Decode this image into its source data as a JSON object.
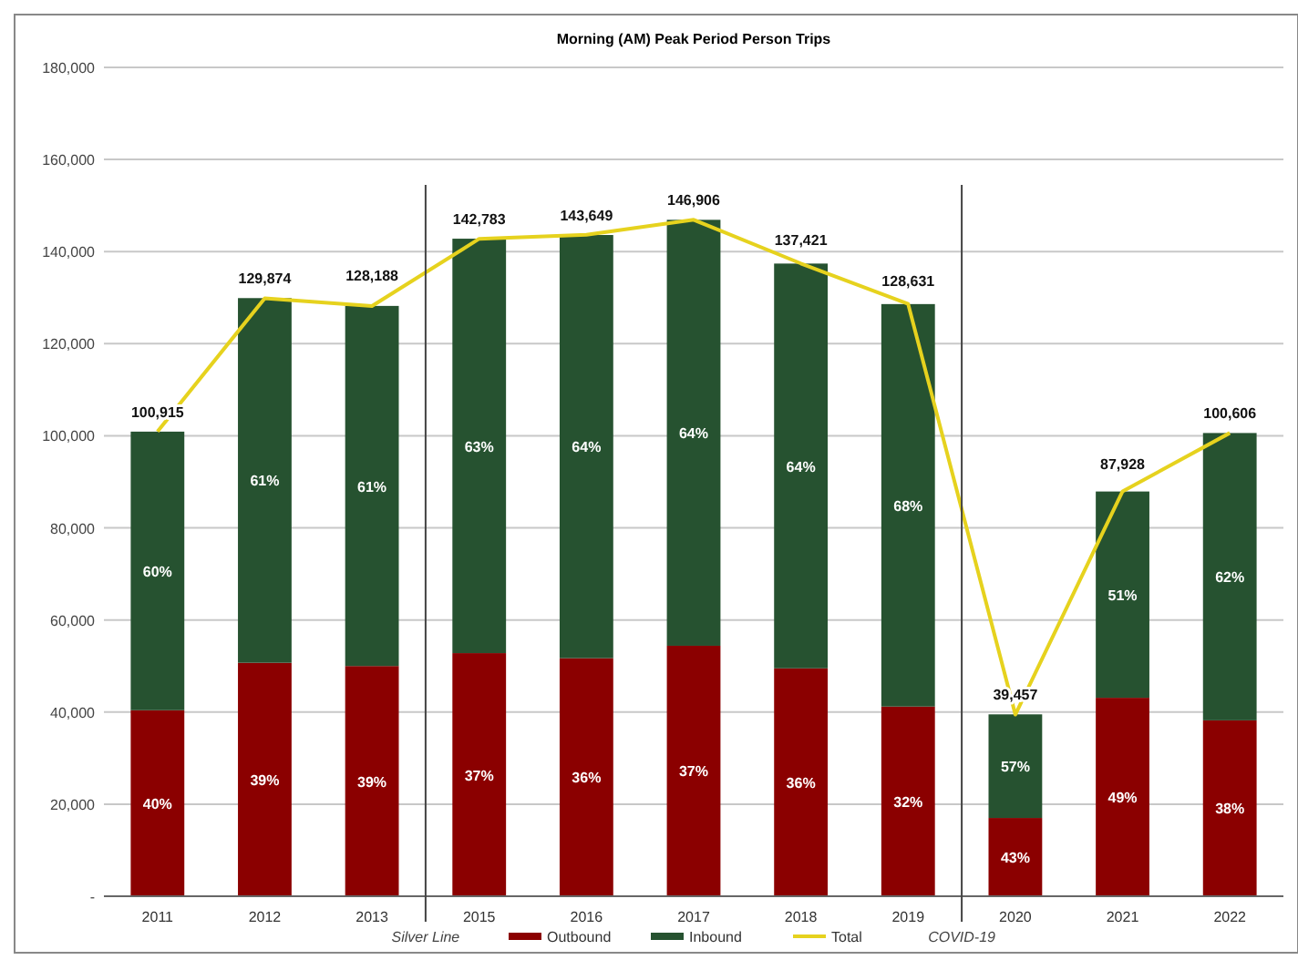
{
  "chart_data": {
    "type": "bar",
    "title": "Morning (AM) Peak Period Person Trips",
    "stacked": true,
    "categories": [
      "2011",
      "2012",
      "2013",
      "2015",
      "2016",
      "2017",
      "2018",
      "2019",
      "2020",
      "2021",
      "2022"
    ],
    "series": [
      {
        "name": "Outbound",
        "color": "#8b0000",
        "values": [
          40400,
          50700,
          50000,
          52800,
          51700,
          54400,
          49500,
          41200,
          17000,
          43100,
          38200
        ]
      },
      {
        "name": "Inbound",
        "color": "#265230",
        "values": [
          60500,
          79200,
          78200,
          90000,
          91900,
          92500,
          87900,
          87400,
          22500,
          44800,
          62400
        ]
      },
      {
        "name": "Total",
        "type": "line",
        "color": "#e6d21e",
        "marker": "none",
        "values": [
          100915,
          129874,
          128188,
          142783,
          143649,
          146906,
          137421,
          128631,
          39457,
          87928,
          100606
        ],
        "value_labels": [
          "100,915",
          "129,874",
          "128,188",
          "142,783",
          "143,649",
          "146,906",
          "137,421",
          "128,631",
          "39,457",
          "87,928",
          "100,606"
        ]
      }
    ],
    "ylim": [
      0,
      180000
    ],
    "yticks": [
      {
        "value": 0,
        "label": "-"
      },
      {
        "value": 20000,
        "label": "20,000"
      },
      {
        "value": 40000,
        "label": "40,000"
      },
      {
        "value": 60000,
        "label": "60,000"
      },
      {
        "value": 80000,
        "label": "80,000"
      },
      {
        "value": 100000,
        "label": "100,000"
      },
      {
        "value": 120000,
        "label": "120,000"
      },
      {
        "value": 140000,
        "label": "140,000"
      },
      {
        "value": 160000,
        "label": "160,000"
      },
      {
        "value": 180000,
        "label": "180,000"
      }
    ],
    "grid": "y",
    "legend": "bottom",
    "annotations": [
      "Silver Line",
      "COVID-19",
      "40%",
      "39%",
      "39%",
      "37%",
      "36%",
      "37%",
      "36%",
      "32%",
      "43%",
      "49%",
      "38%",
      "60%",
      "61%",
      "61%",
      "63%",
      "64%",
      "64%",
      "64%",
      "68%",
      "57%",
      "51%",
      "62%"
    ]
  }
}
